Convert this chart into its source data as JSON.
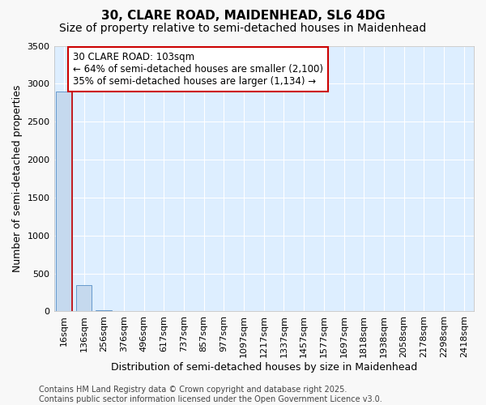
{
  "title": "30, CLARE ROAD, MAIDENHEAD, SL6 4DG",
  "subtitle": "Size of property relative to semi-detached houses in Maidenhead",
  "xlabel": "Distribution of semi-detached houses by size in Maidenhead",
  "ylabel": "Number of semi-detached properties",
  "categories": [
    "16sqm",
    "136sqm",
    "256sqm",
    "376sqm",
    "496sqm",
    "617sqm",
    "737sqm",
    "857sqm",
    "977sqm",
    "1097sqm",
    "1217sqm",
    "1337sqm",
    "1457sqm",
    "1577sqm",
    "1697sqm",
    "1818sqm",
    "1938sqm",
    "2058sqm",
    "2178sqm",
    "2298sqm",
    "2418sqm"
  ],
  "values": [
    2900,
    350,
    10,
    2,
    0,
    0,
    0,
    0,
    0,
    0,
    0,
    0,
    0,
    0,
    0,
    0,
    0,
    0,
    0,
    0,
    0
  ],
  "bar_color": "#c5d9ee",
  "bar_edge_color": "#6699cc",
  "vline_color": "#cc0000",
  "annotation_text": "30 CLARE ROAD: 103sqm\n← 64% of semi-detached houses are smaller (2,100)\n35% of semi-detached houses are larger (1,134) →",
  "annotation_box_color": "#ffffff",
  "annotation_border_color": "#cc0000",
  "ylim": [
    0,
    3500
  ],
  "yticks": [
    0,
    500,
    1000,
    1500,
    2000,
    2500,
    3000,
    3500
  ],
  "bg_color": "#ddeeff",
  "grid_color": "#ffffff",
  "fig_bg_color": "#f8f8f8",
  "footer": "Contains HM Land Registry data © Crown copyright and database right 2025.\nContains public sector information licensed under the Open Government Licence v3.0.",
  "title_fontsize": 11,
  "subtitle_fontsize": 10,
  "ylabel_fontsize": 9,
  "xlabel_fontsize": 9,
  "tick_fontsize": 8,
  "annotation_fontsize": 8.5,
  "footer_fontsize": 7
}
